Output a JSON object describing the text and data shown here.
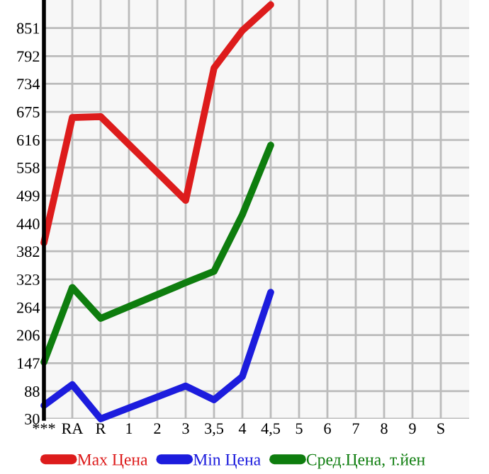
{
  "chart_data": {
    "type": "line",
    "categories": [
      "***",
      "RA",
      "R",
      "1",
      "2",
      "3",
      "3,5",
      "4",
      "4,5",
      "5",
      "6",
      "7",
      "8",
      "9",
      "S"
    ],
    "series": [
      {
        "name": "Max Цена",
        "color": "#dd1c1c",
        "values": [
          400,
          663,
          665,
          null,
          null,
          489,
          767,
          846,
          900,
          null,
          null,
          null,
          null,
          null,
          null
        ]
      },
      {
        "name": "Min Цена",
        "color": "#1c1cdd",
        "values": [
          58,
          102,
          30,
          null,
          null,
          99,
          70,
          119,
          296,
          null,
          null,
          null,
          null,
          null,
          null
        ]
      },
      {
        "name": "Сред.Цена, т.йен",
        "color": "#0e7d0e",
        "values": [
          149,
          306,
          241,
          null,
          null,
          316,
          340,
          459,
          605,
          null,
          null,
          null,
          null,
          null,
          null
        ]
      }
    ],
    "ylim": [
      30,
      910
    ],
    "yticks": [
      30,
      88,
      147,
      206,
      264,
      323,
      382,
      440,
      499,
      558,
      616,
      675,
      734,
      792,
      851
    ],
    "grid": true,
    "legend": "bottom",
    "marker": "none",
    "line_style": "solid"
  }
}
